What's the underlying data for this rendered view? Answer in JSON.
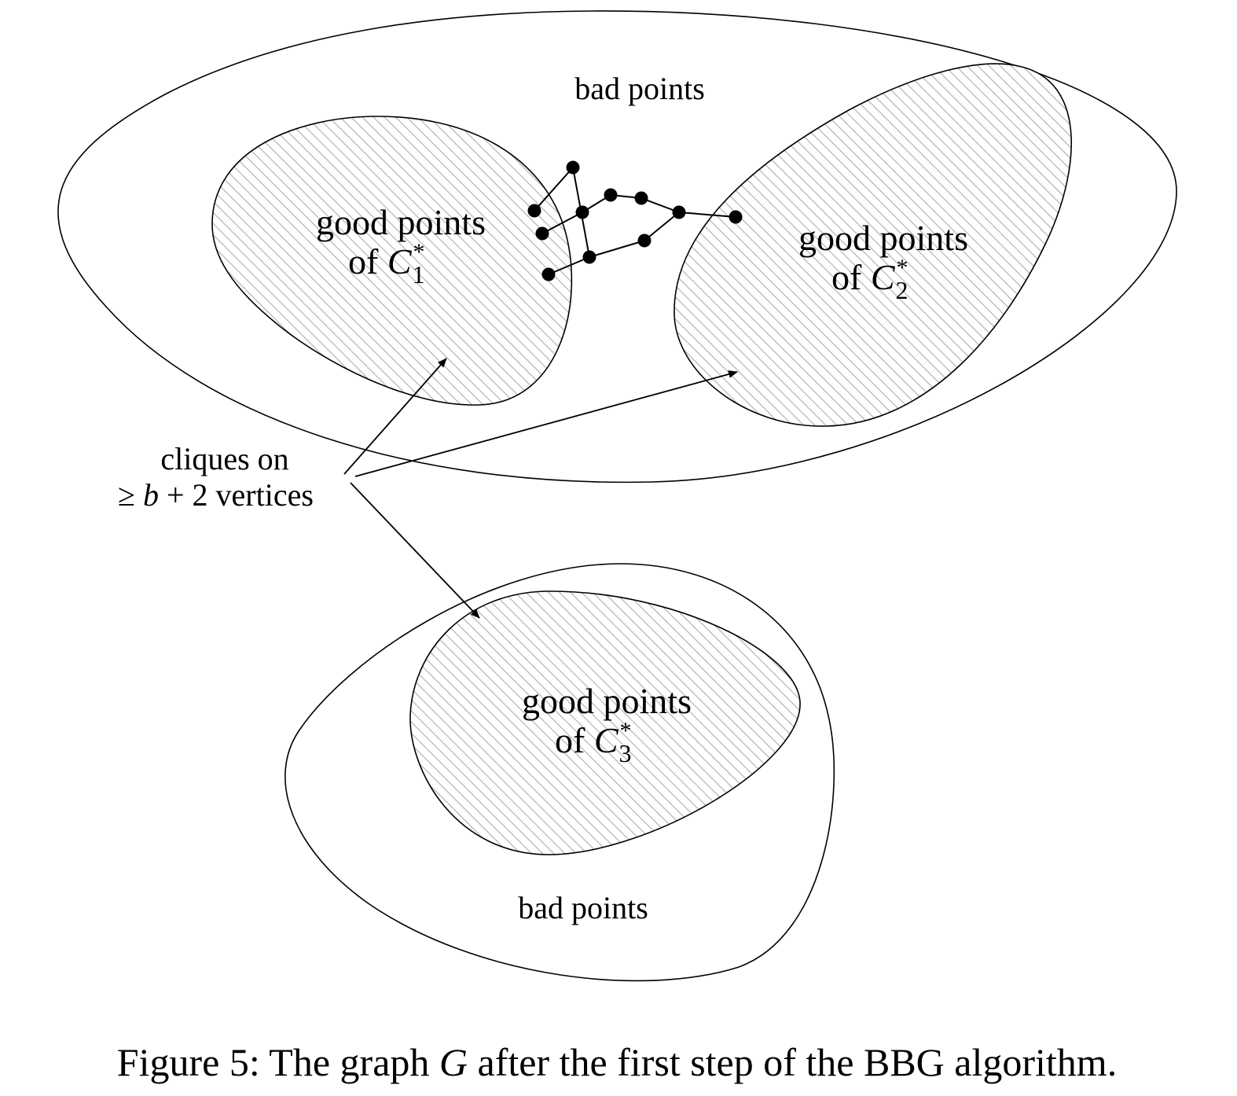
{
  "labels": {
    "bad_points_top": "bad points",
    "bad_points_bottom": "bad points",
    "good_points": "good points",
    "of": "of",
    "cluster_symbol": "C",
    "star": "*",
    "cluster1_index": "1",
    "cluster2_index": "2",
    "cluster3_index": "3",
    "cliques_line1": "cliques on",
    "cliques_line2_symbol": "≥",
    "cliques_line2_var": "b",
    "cliques_line2_rest": "+ 2 vertices"
  },
  "caption": {
    "prefix": "Figure 5: The graph",
    "graph_symbol": "G",
    "suffix": "after the first step of the BBG algorithm."
  },
  "colors": {
    "stroke": "#000000",
    "hatch": "#b3b3b3",
    "background": "#ffffff"
  }
}
